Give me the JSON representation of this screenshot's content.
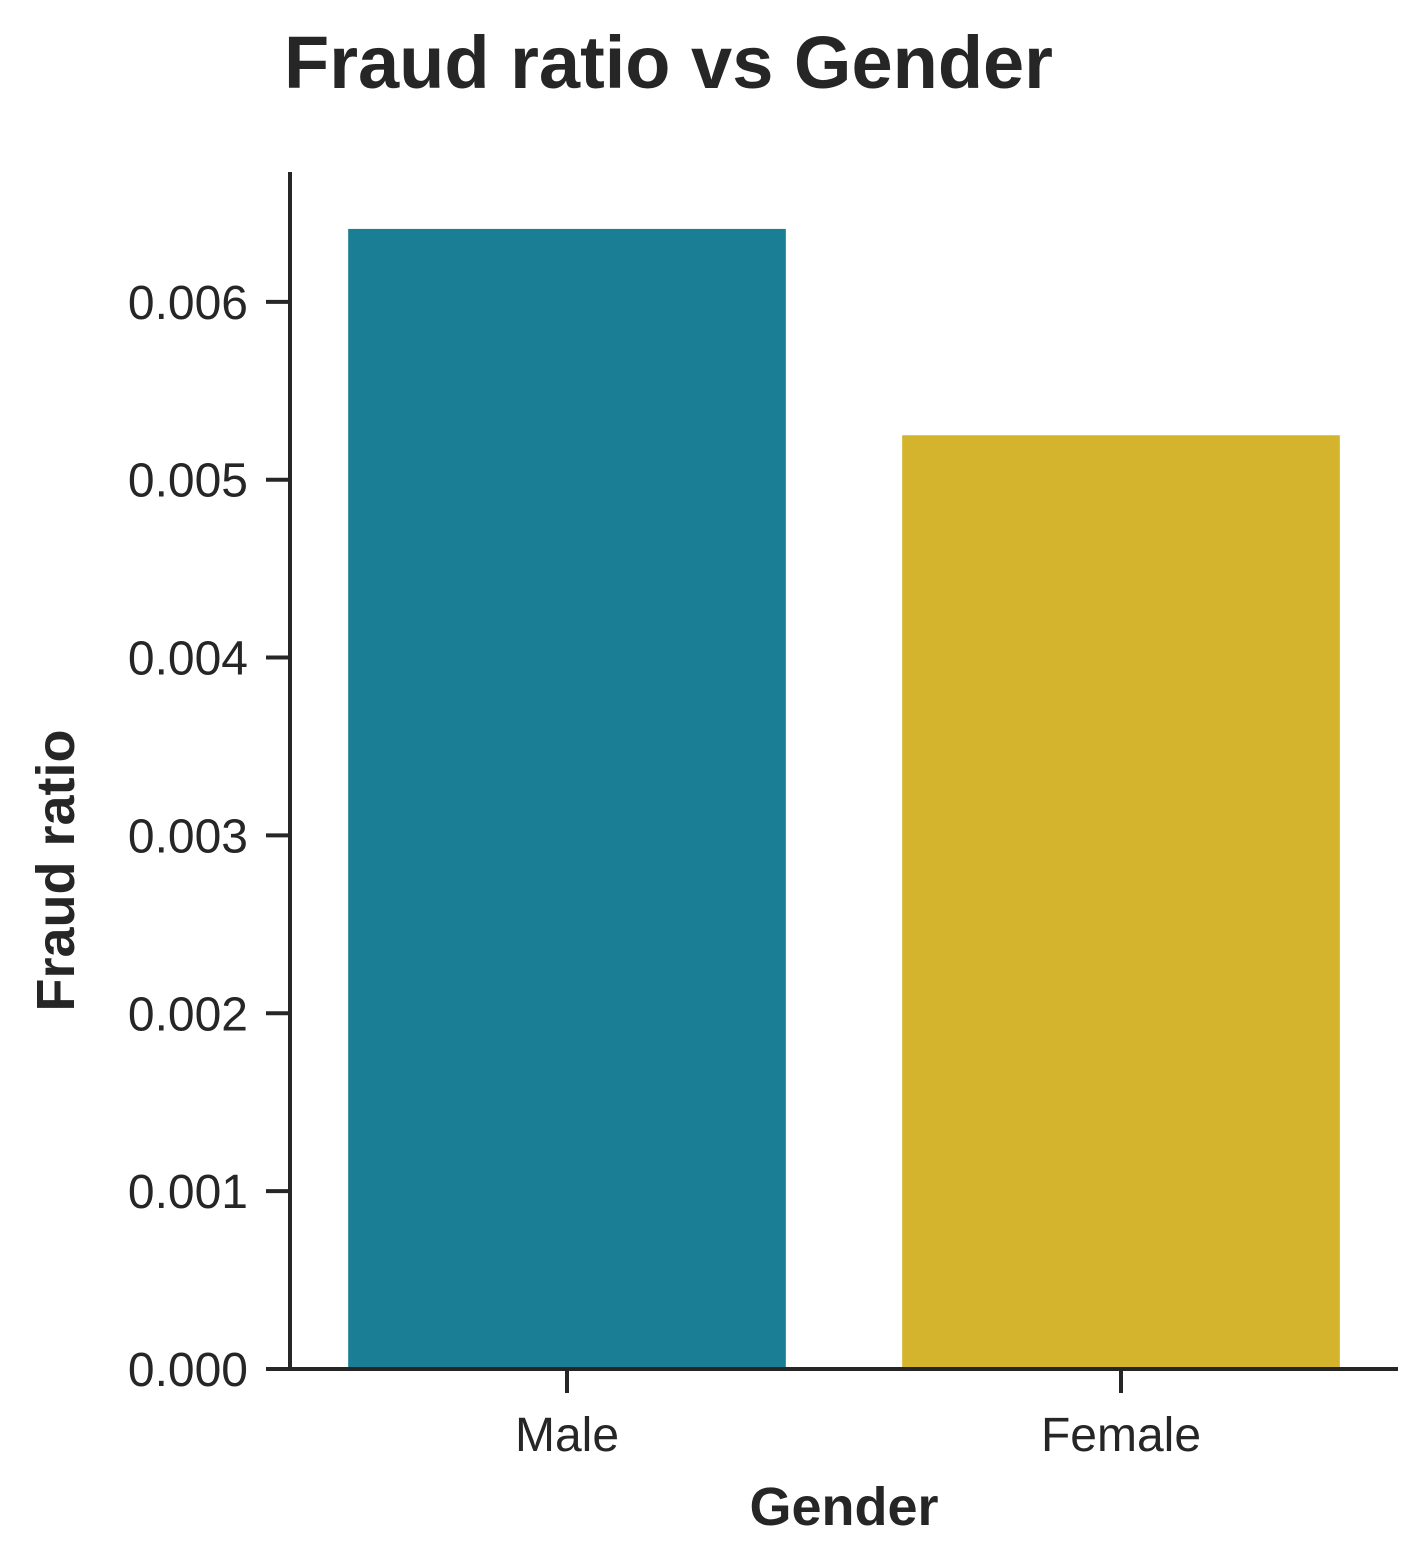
{
  "chart_data": {
    "type": "bar",
    "title": "Fraud ratio vs Gender",
    "xlabel": "Gender",
    "ylabel": "Fraud ratio",
    "categories": [
      "Male",
      "Female"
    ],
    "values": [
      0.00641,
      0.00525
    ],
    "colors": [
      "#1a7f94",
      "#d4b42c"
    ],
    "ylim": [
      0,
      0.00673
    ],
    "yticks": [
      0.0,
      0.001,
      0.002,
      0.003,
      0.004,
      0.005,
      0.006
    ],
    "ytick_labels": [
      "0.000",
      "0.001",
      "0.002",
      "0.003",
      "0.004",
      "0.005",
      "0.006"
    ],
    "grid": false,
    "legend": "none"
  }
}
